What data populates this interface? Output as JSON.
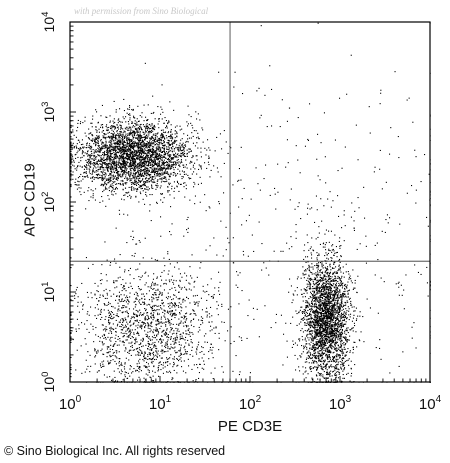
{
  "chart_data": {
    "type": "scatter",
    "title": "",
    "xlabel": "PE CD3E",
    "ylabel": "APC CD19",
    "xscale": "log",
    "yscale": "log",
    "xlim": [
      1,
      10000
    ],
    "ylim": [
      1,
      10000
    ],
    "gate_x": 60,
    "gate_y": 22,
    "x_ticks": [
      {
        "value": 1,
        "base": "10",
        "exp": "0"
      },
      {
        "value": 10,
        "base": "10",
        "exp": "1"
      },
      {
        "value": 100,
        "base": "10",
        "exp": "2"
      },
      {
        "value": 1000,
        "base": "10",
        "exp": "3"
      },
      {
        "value": 10000,
        "base": "10",
        "exp": "4"
      }
    ],
    "y_ticks": [
      {
        "value": 1,
        "base": "10",
        "exp": "0"
      },
      {
        "value": 10,
        "base": "10",
        "exp": "1"
      },
      {
        "value": 100,
        "base": "10",
        "exp": "2"
      },
      {
        "value": 1000,
        "base": "10",
        "exp": "3"
      },
      {
        "value": 10000,
        "base": "10",
        "exp": "4"
      }
    ],
    "populations": [
      {
        "name_hidden": "",
        "cx": 5,
        "cy": 330,
        "sx": 0.32,
        "sy": 0.2,
        "count": 3200
      },
      {
        "name_hidden": "",
        "cx": 700,
        "cy": 5,
        "sx": 0.13,
        "sy": 0.33,
        "count": 2600
      },
      {
        "name_hidden": "",
        "cx": 7,
        "cy": 4,
        "sx": 0.38,
        "sy": 0.32,
        "count": 1500
      },
      {
        "name_hidden": "",
        "cx": 300,
        "cy": 30,
        "sx": 1.2,
        "sy": 1.0,
        "count": 500
      }
    ]
  },
  "watermark": "with permission from Sino Biological",
  "copyright": "© Sino Biological Inc. All rights reserved"
}
